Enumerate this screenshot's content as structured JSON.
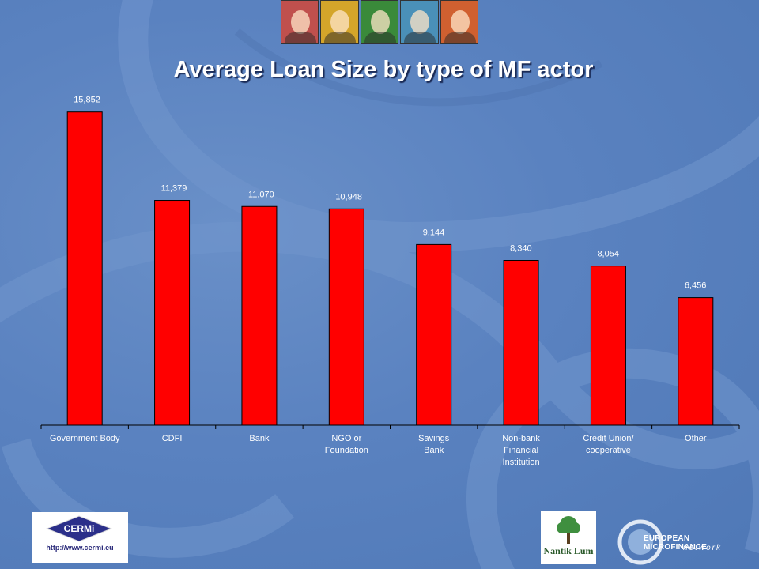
{
  "title": "Average Loan Size by type of MF actor",
  "chart_data": {
    "type": "bar",
    "title": "Average Loan Size by type of MF actor",
    "categories": [
      [
        "Government Body"
      ],
      [
        "CDFI"
      ],
      [
        "Bank"
      ],
      [
        "NGO or",
        "Foundation"
      ],
      [
        "Savings",
        "Bank"
      ],
      [
        "Non-bank",
        "Financial",
        "Institution"
      ],
      [
        "Credit Union/",
        "cooperative"
      ],
      [
        "Other"
      ]
    ],
    "values": [
      15852,
      11379,
      11070,
      10948,
      9144,
      8340,
      8054,
      6456
    ],
    "value_labels": [
      "15,852",
      "11,379",
      "11,070",
      "10,948",
      "9,144",
      "8,340",
      "8,054",
      "6,456"
    ],
    "bar_color": "#ff0000",
    "ylim": [
      0,
      16000
    ],
    "grid": false,
    "legend": "none"
  },
  "photos": [
    {
      "color": "#c0504d",
      "name": "photo-woman-red"
    },
    {
      "color": "#d4a52a",
      "name": "photo-man-yellow"
    },
    {
      "color": "#3a8a3a",
      "name": "photo-woman-green"
    },
    {
      "color": "#4a90b8",
      "name": "photo-man-blue"
    },
    {
      "color": "#d06030",
      "name": "photo-woman-orange"
    }
  ],
  "logos": {
    "cermi_name": "CERMi",
    "cermi_url": "http://www.cermi.eu",
    "nantik_name": "Nantik Lum",
    "emn_line1": "EUROPEAN MICROFINANCE",
    "emn_line2": "network"
  },
  "colors": {
    "background": "#5a82c0",
    "bar": "#ff0000",
    "text": "#ffffff"
  }
}
